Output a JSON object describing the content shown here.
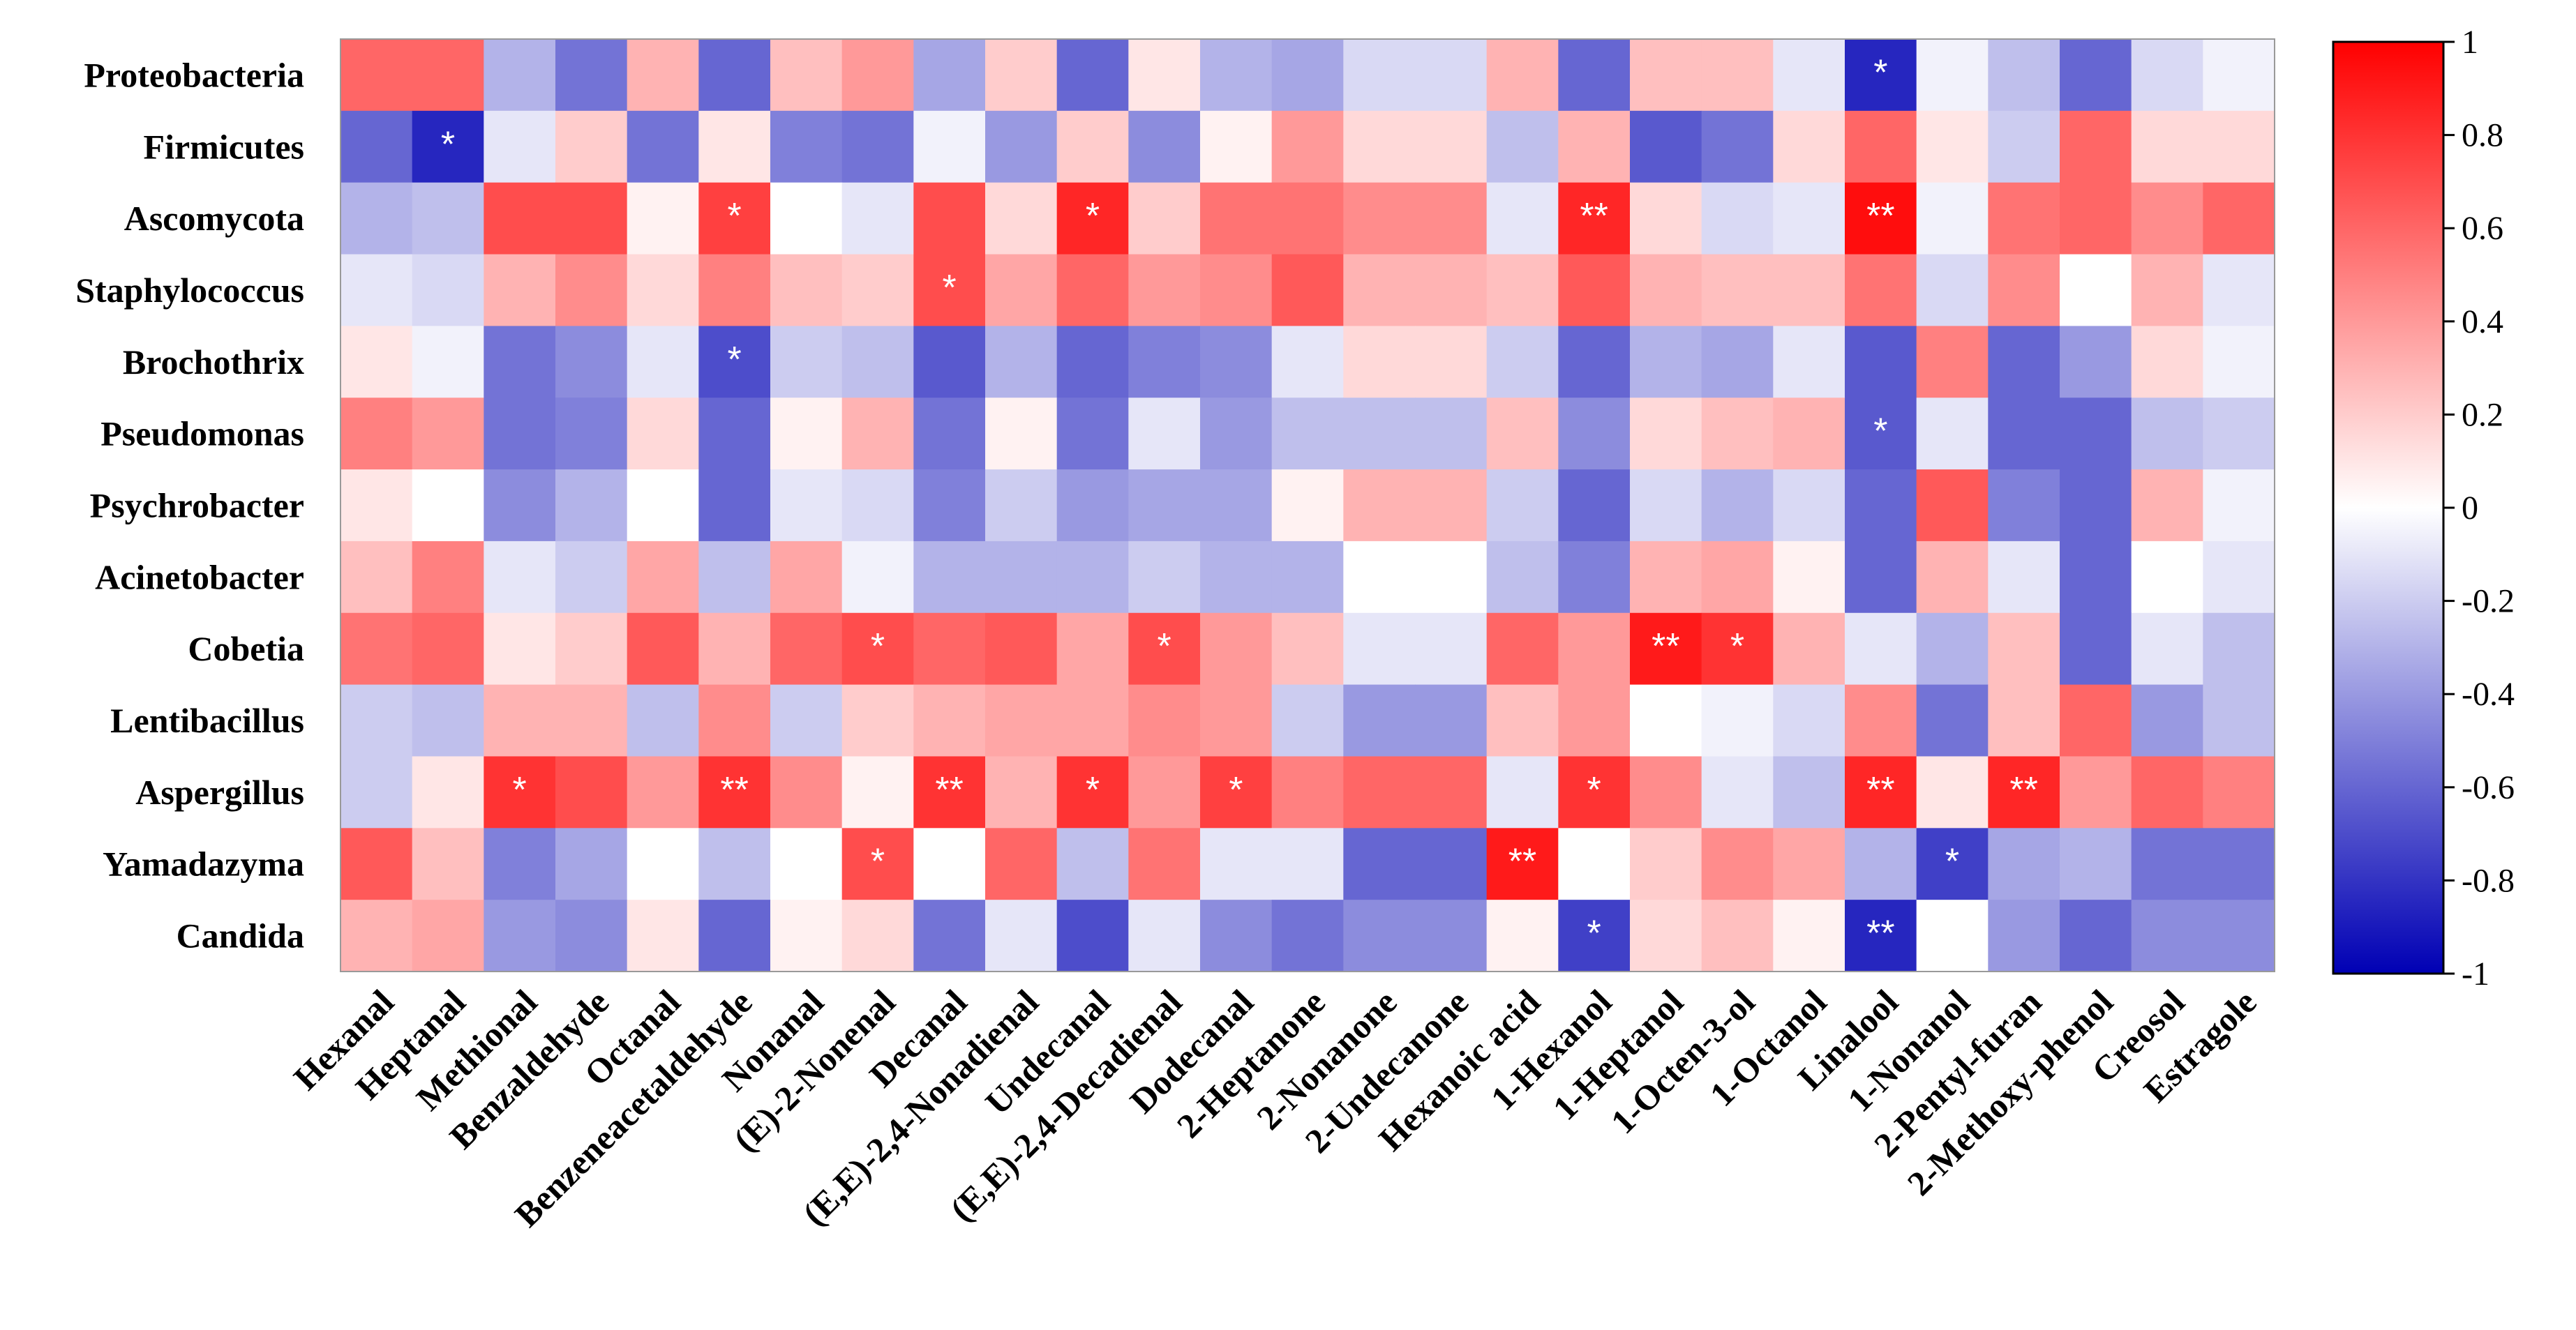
{
  "chart_data": {
    "type": "heatmap",
    "title": "",
    "rows": [
      "Proteobacteria",
      "Firmicutes",
      "Ascomycota",
      "Staphylococcus",
      "Brochothrix",
      "Pseudomonas",
      "Psychrobacter",
      "Acinetobacter",
      "Cobetia",
      "Lentibacillus",
      "Aspergillus",
      "Yamadazyma",
      "Candida"
    ],
    "columns": [
      "Hexanal",
      "Heptanal",
      "Methional",
      "Benzaldehyde",
      "Octanal",
      "Benzeneacetaldehyde",
      "Nonanal",
      "(E)-2-Nonenal",
      "Decanal",
      "(E,E)-2,4-Nonadienal",
      "Undecanal",
      "(E,E)-2,4-Decadienal",
      "Dodecanal",
      "2-Heptanone",
      "2-Nonanone",
      "2-Undecanone",
      "Hexanoic acid",
      "1-Hexanol",
      "1-Heptanol",
      "1-Octen-3-ol",
      "1-Octanol",
      "Linalool",
      "1-Nonanol",
      "2-Pentyl-furan",
      "2-Methoxy-phenol",
      "Creosol",
      "Estragole"
    ],
    "values": [
      [
        0.6,
        0.6,
        -0.3,
        -0.55,
        0.3,
        -0.6,
        0.25,
        0.4,
        -0.35,
        0.2,
        -0.6,
        0.1,
        -0.3,
        -0.35,
        -0.15,
        -0.15,
        0.3,
        -0.6,
        0.25,
        0.25,
        -0.1,
        -0.85,
        -0.05,
        -0.25,
        -0.6,
        -0.15,
        -0.05
      ],
      [
        -0.6,
        -0.85,
        -0.1,
        0.2,
        -0.55,
        0.1,
        -0.5,
        -0.55,
        -0.05,
        -0.4,
        0.2,
        -0.45,
        0.05,
        0.4,
        0.15,
        0.15,
        -0.25,
        0.3,
        -0.65,
        -0.55,
        0.15,
        0.6,
        0.1,
        -0.2,
        0.6,
        0.15,
        0.15
      ],
      [
        -0.3,
        -0.25,
        0.7,
        0.7,
        0.05,
        0.75,
        0.0,
        -0.1,
        0.7,
        0.15,
        0.85,
        0.2,
        0.55,
        0.55,
        0.45,
        0.45,
        -0.1,
        0.85,
        0.15,
        -0.15,
        -0.1,
        0.95,
        -0.05,
        0.55,
        0.6,
        0.45,
        0.6
      ],
      [
        -0.1,
        -0.15,
        0.3,
        0.45,
        0.15,
        0.5,
        0.25,
        0.2,
        0.7,
        0.35,
        0.6,
        0.4,
        0.45,
        0.65,
        0.3,
        0.3,
        0.25,
        0.65,
        0.3,
        0.25,
        0.25,
        0.55,
        -0.15,
        0.45,
        0.0,
        0.3,
        -0.1
      ],
      [
        0.1,
        -0.05,
        -0.55,
        -0.45,
        -0.1,
        -0.7,
        -0.2,
        -0.25,
        -0.65,
        -0.3,
        -0.6,
        -0.5,
        -0.45,
        -0.1,
        0.15,
        0.15,
        -0.2,
        -0.6,
        -0.3,
        -0.35,
        -0.1,
        -0.65,
        0.5,
        -0.6,
        -0.4,
        0.15,
        -0.05
      ],
      [
        0.5,
        0.4,
        -0.55,
        -0.5,
        0.15,
        -0.6,
        0.05,
        0.3,
        -0.55,
        0.05,
        -0.55,
        -0.1,
        -0.4,
        -0.25,
        -0.25,
        -0.25,
        0.25,
        -0.45,
        0.15,
        0.25,
        0.3,
        -0.65,
        -0.1,
        -0.6,
        -0.6,
        -0.25,
        -0.2
      ],
      [
        0.1,
        0.0,
        -0.45,
        -0.3,
        0.0,
        -0.6,
        -0.1,
        -0.15,
        -0.5,
        -0.2,
        -0.4,
        -0.35,
        -0.35,
        0.05,
        0.3,
        0.3,
        -0.2,
        -0.6,
        -0.15,
        -0.3,
        -0.15,
        -0.6,
        0.65,
        -0.5,
        -0.6,
        0.3,
        -0.05
      ],
      [
        0.25,
        0.5,
        -0.1,
        -0.2,
        0.35,
        -0.25,
        0.35,
        -0.05,
        -0.3,
        -0.3,
        -0.3,
        -0.2,
        -0.3,
        -0.3,
        0.0,
        0.0,
        -0.25,
        -0.5,
        0.3,
        0.35,
        0.05,
        -0.6,
        0.3,
        -0.1,
        -0.6,
        0.0,
        -0.1
      ],
      [
        0.55,
        0.6,
        0.1,
        0.2,
        0.65,
        0.3,
        0.6,
        0.7,
        0.6,
        0.65,
        0.35,
        0.7,
        0.4,
        0.25,
        -0.1,
        -0.1,
        0.6,
        0.4,
        0.9,
        0.8,
        0.3,
        -0.1,
        -0.3,
        0.25,
        -0.6,
        -0.1,
        -0.25
      ],
      [
        -0.2,
        -0.25,
        0.3,
        0.3,
        -0.25,
        0.45,
        -0.2,
        0.2,
        0.3,
        0.35,
        0.35,
        0.45,
        0.4,
        -0.2,
        -0.4,
        -0.4,
        0.25,
        0.4,
        0.0,
        -0.05,
        -0.15,
        0.45,
        -0.55,
        0.25,
        0.6,
        -0.4,
        -0.25
      ],
      [
        -0.2,
        0.1,
        0.8,
        0.7,
        0.4,
        0.8,
        0.45,
        0.05,
        0.8,
        0.3,
        0.8,
        0.4,
        0.75,
        0.5,
        0.6,
        0.6,
        -0.1,
        0.8,
        0.45,
        -0.1,
        -0.25,
        0.85,
        0.1,
        0.85,
        0.4,
        0.6,
        0.5
      ],
      [
        0.65,
        0.25,
        -0.5,
        -0.35,
        0.0,
        -0.25,
        0.0,
        0.7,
        0.0,
        0.6,
        -0.25,
        0.55,
        -0.1,
        -0.1,
        -0.6,
        -0.6,
        0.9,
        0.0,
        0.2,
        0.45,
        0.35,
        -0.3,
        -0.75,
        -0.35,
        -0.3,
        -0.55,
        -0.55
      ],
      [
        0.3,
        0.35,
        -0.4,
        -0.45,
        0.1,
        -0.6,
        0.05,
        0.15,
        -0.55,
        -0.1,
        -0.7,
        -0.1,
        -0.45,
        -0.55,
        -0.45,
        -0.45,
        0.05,
        -0.75,
        0.15,
        0.25,
        0.05,
        -0.85,
        0.0,
        -0.4,
        -0.6,
        -0.45,
        -0.45
      ]
    ],
    "significance": [
      [
        "",
        "",
        "",
        "",
        "",
        "",
        "",
        "",
        "",
        "",
        "",
        "",
        "",
        "",
        "",
        "",
        "",
        "",
        "",
        "",
        "",
        "*",
        "",
        "",
        "",
        "",
        ""
      ],
      [
        "",
        "*",
        "",
        "",
        "",
        "",
        "",
        "",
        "",
        "",
        "",
        "",
        "",
        "",
        "",
        "",
        "",
        "",
        "",
        "",
        "",
        "",
        "",
        "",
        "",
        "",
        ""
      ],
      [
        "",
        "",
        "",
        "",
        "",
        "*",
        "",
        "",
        "",
        "",
        "*",
        "",
        "",
        "",
        "",
        "",
        "",
        "**",
        "",
        "",
        "",
        "**",
        "",
        "",
        "",
        "",
        ""
      ],
      [
        "",
        "",
        "",
        "",
        "",
        "",
        "",
        "",
        "*",
        "",
        "",
        "",
        "",
        "",
        "",
        "",
        "",
        "",
        "",
        "",
        "",
        "",
        "",
        "",
        "",
        "",
        ""
      ],
      [
        "",
        "",
        "",
        "",
        "",
        "*",
        "",
        "",
        "",
        "",
        "",
        "",
        "",
        "",
        "",
        "",
        "",
        "",
        "",
        "",
        "",
        "",
        "",
        "",
        "",
        "",
        ""
      ],
      [
        "",
        "",
        "",
        "",
        "",
        "",
        "",
        "",
        "",
        "",
        "",
        "",
        "",
        "",
        "",
        "",
        "",
        "",
        "",
        "",
        "",
        "*",
        "",
        "",
        "",
        "",
        ""
      ],
      [
        "",
        "",
        "",
        "",
        "",
        "",
        "",
        "",
        "",
        "",
        "",
        "",
        "",
        "",
        "",
        "",
        "",
        "",
        "",
        "",
        "",
        "",
        "",
        "",
        "",
        "",
        ""
      ],
      [
        "",
        "",
        "",
        "",
        "",
        "",
        "",
        "",
        "",
        "",
        "",
        "",
        "",
        "",
        "",
        "",
        "",
        "",
        "",
        "",
        "",
        "",
        "",
        "",
        "",
        "",
        ""
      ],
      [
        "",
        "",
        "",
        "",
        "",
        "",
        "",
        "*",
        "",
        "",
        "",
        "*",
        "",
        "",
        "",
        "",
        "",
        "",
        "**",
        "*",
        "",
        "",
        "",
        "",
        "",
        "",
        ""
      ],
      [
        "",
        "",
        "",
        "",
        "",
        "",
        "",
        "",
        "",
        "",
        "",
        "",
        "",
        "",
        "",
        "",
        "",
        "",
        "",
        "",
        "",
        "",
        "",
        "",
        "",
        "",
        ""
      ],
      [
        "",
        "",
        "*",
        "",
        "",
        "**",
        "",
        "",
        "**",
        "",
        "*",
        "",
        "*",
        "",
        "",
        "",
        "",
        "*",
        "",
        "",
        "",
        "**",
        "",
        "**",
        "",
        "",
        ""
      ],
      [
        "",
        "",
        "",
        "",
        "",
        "",
        "",
        "*",
        "",
        "",
        "",
        "",
        "",
        "",
        "",
        "",
        "**",
        "",
        "",
        "",
        "",
        "",
        "*",
        "",
        "",
        "",
        ""
      ],
      [
        "",
        "",
        "",
        "",
        "",
        "",
        "",
        "",
        "",
        "",
        "",
        "",
        "",
        "",
        "",
        "",
        "",
        "*",
        "",
        "",
        "",
        "**",
        "",
        "",
        "",
        "",
        ""
      ]
    ],
    "color_scale": {
      "min": -1,
      "max": 1,
      "low_color": "#0000b4",
      "mid_color": "#ffffff",
      "high_color": "#ff0000",
      "ticks": [
        1,
        0.8,
        0.6,
        0.4,
        0.2,
        0,
        -0.2,
        -0.4,
        -0.6,
        -0.8,
        -1
      ],
      "tick_labels": [
        "1",
        "0.8",
        "0.6",
        "0.4",
        "0.2",
        "0",
        "-0.2",
        "-0.4",
        "-0.6",
        "-0.8",
        "-1"
      ]
    }
  }
}
